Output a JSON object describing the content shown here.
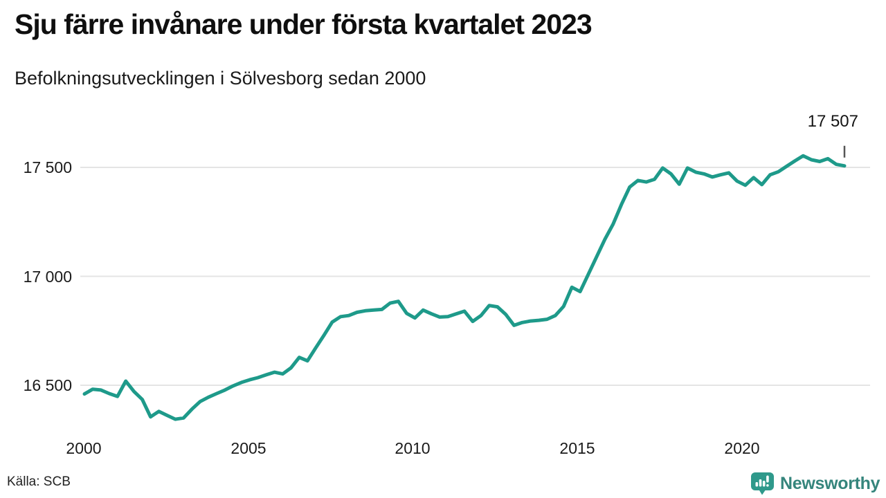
{
  "header": {
    "title": "Sju färre invånare under första kvartalet 2023",
    "subtitle": "Befolkningsutvecklingen i Sölvesborg sedan 2000"
  },
  "chart_data": {
    "type": "line",
    "title": "Sju färre invånare under första kvartalet 2023",
    "subtitle": "Befolkningsutvecklingen i Sölvesborg sedan 2000",
    "unit": "invånare",
    "frequency": "quarterly",
    "x_start": "2000 Q1",
    "x_end": "2023 Q1",
    "x_tick_labels": [
      "2000",
      "2005",
      "2010",
      "2015",
      "2020"
    ],
    "y_ticks": [
      16500,
      17000,
      17500
    ],
    "y_tick_labels": [
      "16 500",
      "17 000",
      "17 500"
    ],
    "ylim": [
      16250,
      17650
    ],
    "grid": "horizontal",
    "legend": "none",
    "line_color": "#1E9A8A",
    "gridline_color": "#e4e4e4",
    "annotation": {
      "label": "17 507",
      "value": 17507,
      "position": "last-point"
    },
    "series": [
      {
        "name": "Befolkning i Sölvesborg",
        "color": "#1E9A8A",
        "values": [
          16460,
          16482,
          16478,
          16462,
          16449,
          16519,
          16471,
          16435,
          16355,
          16380,
          16362,
          16344,
          16350,
          16390,
          16425,
          16445,
          16462,
          16478,
          16497,
          16513,
          16525,
          16535,
          16548,
          16560,
          16552,
          16580,
          16628,
          16612,
          16672,
          16730,
          16790,
          16815,
          16820,
          16835,
          16842,
          16845,
          16848,
          16877,
          16885,
          16830,
          16809,
          16845,
          16828,
          16813,
          16815,
          16828,
          16840,
          16793,
          16820,
          16866,
          16860,
          16825,
          16775,
          16788,
          16795,
          16798,
          16803,
          16820,
          16862,
          16950,
          16930,
          17010,
          17090,
          17170,
          17240,
          17330,
          17410,
          17440,
          17433,
          17445,
          17497,
          17470,
          17423,
          17497,
          17478,
          17470,
          17456,
          17466,
          17475,
          17437,
          17418,
          17453,
          17421,
          17466,
          17480,
          17505,
          17530,
          17553,
          17535,
          17527,
          17540,
          17514,
          17507
        ]
      }
    ]
  },
  "footer": {
    "source": "Källa: SCB",
    "brand_name": "Newsworthy"
  }
}
